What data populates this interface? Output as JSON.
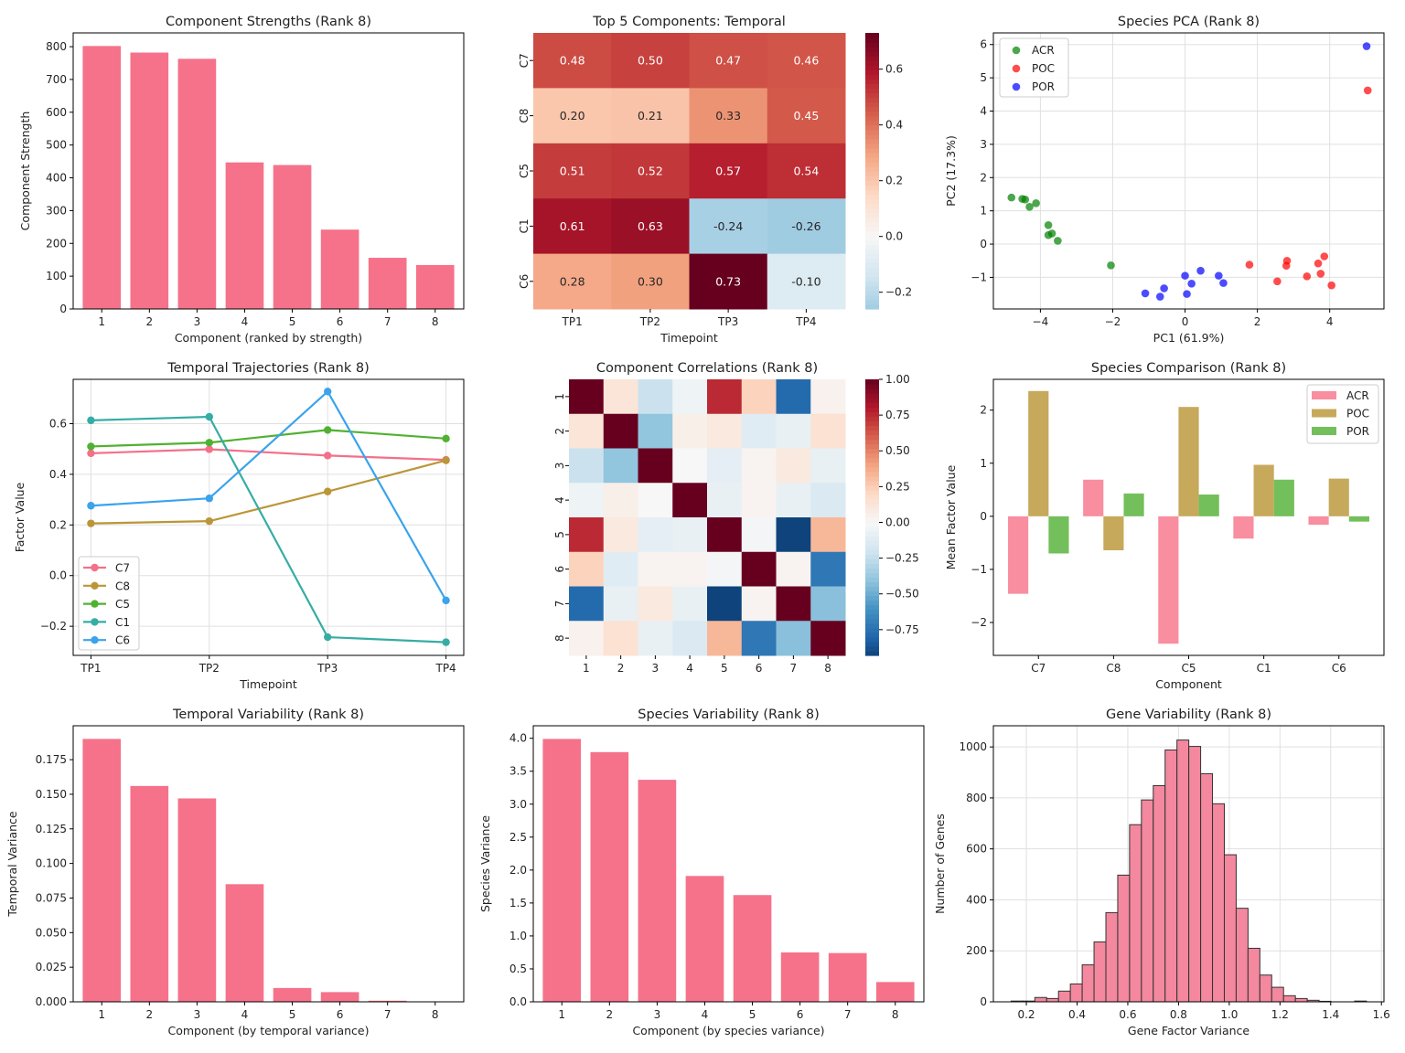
{
  "chart_data": [
    {
      "id": "strengths",
      "type": "bar",
      "title": "Component Strengths (Rank 8)",
      "xlabel": "Component (ranked by strength)",
      "ylabel": "Component Strength",
      "categories": [
        "1",
        "2",
        "3",
        "4",
        "5",
        "6",
        "7",
        "8"
      ],
      "values": [
        802,
        782,
        763,
        447,
        439,
        242,
        156,
        134
      ],
      "ylim": [
        0,
        842
      ],
      "yticks": [
        0,
        100,
        200,
        300,
        400,
        500,
        600,
        700,
        800
      ],
      "ytick_labels": [
        "0",
        "100",
        "200",
        "300",
        "400",
        "500",
        "600",
        "700",
        "800"
      ],
      "color": "#f5728a",
      "grid": false
    },
    {
      "id": "temporal_heatmap",
      "type": "heatmap",
      "title": "Top 5 Components: Temporal",
      "xlabel": "Timepoint",
      "ylabel": "",
      "x": [
        "TP1",
        "TP2",
        "TP3",
        "TP4"
      ],
      "y": [
        "C7",
        "C8",
        "C5",
        "C1",
        "C6"
      ],
      "values": [
        [
          0.48,
          0.5,
          0.47,
          0.46
        ],
        [
          0.2,
          0.21,
          0.33,
          0.45
        ],
        [
          0.51,
          0.52,
          0.57,
          0.54
        ],
        [
          0.61,
          0.63,
          -0.24,
          -0.26
        ],
        [
          0.28,
          0.3,
          0.73,
          -0.1
        ]
      ],
      "annotations": [
        [
          "0.48",
          "0.50",
          "0.47",
          "0.46"
        ],
        [
          "0.20",
          "0.21",
          "0.33",
          "0.45"
        ],
        [
          "0.51",
          "0.52",
          "0.57",
          "0.54"
        ],
        [
          "0.61",
          "0.63",
          "-0.24",
          "-0.26"
        ],
        [
          "0.28",
          "0.30",
          "0.73",
          "-0.10"
        ]
      ],
      "colormap": "RdBu_r",
      "center": 0,
      "vrange": [
        -0.26,
        0.73
      ],
      "colorbar_ticks": [
        -0.2,
        0.0,
        0.2,
        0.4,
        0.6
      ],
      "colorbar_tick_labels": [
        "−0.2",
        "0.0",
        "0.2",
        "0.4",
        "0.6"
      ]
    },
    {
      "id": "pca",
      "type": "scatter",
      "title": "Species PCA (Rank 8)",
      "xlabel": "PC1 (61.9%)",
      "ylabel": "PC2 (17.3%)",
      "xlim": [
        -5.3,
        5.5
      ],
      "ylim": [
        -1.95,
        6.35
      ],
      "xticks": [
        -4,
        -2,
        0,
        2,
        4
      ],
      "xtick_labels": [
        "−4",
        "−2",
        "0",
        "2",
        "4"
      ],
      "yticks": [
        -1,
        0,
        1,
        2,
        3,
        4,
        5,
        6
      ],
      "ytick_labels": [
        "−1",
        "0",
        "1",
        "2",
        "3",
        "4",
        "5",
        "6"
      ],
      "grid": true,
      "legend_position": "top-left",
      "series": [
        {
          "name": "ACR",
          "color": "#008000",
          "points": [
            [
              -4.8,
              1.4
            ],
            [
              -4.5,
              1.36
            ],
            [
              -4.42,
              1.34
            ],
            [
              -4.3,
              1.12
            ],
            [
              -4.12,
              1.23
            ],
            [
              -3.78,
              0.57
            ],
            [
              -3.68,
              0.32
            ],
            [
              -3.78,
              0.27
            ],
            [
              -3.52,
              0.1
            ],
            [
              -2.05,
              -0.64
            ]
          ]
        },
        {
          "name": "POC",
          "color": "#ff0000",
          "points": [
            [
              5.05,
              4.62
            ],
            [
              1.78,
              -0.62
            ],
            [
              2.82,
              -0.5
            ],
            [
              2.8,
              -0.65
            ],
            [
              3.85,
              -0.37
            ],
            [
              3.68,
              -0.58
            ],
            [
              2.55,
              -1.12
            ],
            [
              3.37,
              -0.97
            ],
            [
              3.75,
              -0.89
            ],
            [
              4.05,
              -1.24
            ]
          ]
        },
        {
          "name": "POR",
          "color": "#0000ff",
          "points": [
            [
              5.02,
              5.95
            ],
            [
              0.0,
              -0.95
            ],
            [
              0.43,
              -0.8
            ],
            [
              0.93,
              -0.95
            ],
            [
              1.06,
              -1.17
            ],
            [
              0.18,
              -1.19
            ],
            [
              -0.58,
              -1.33
            ],
            [
              -1.1,
              -1.48
            ],
            [
              -0.69,
              -1.58
            ],
            [
              0.05,
              -1.5
            ]
          ]
        }
      ]
    },
    {
      "id": "trajectories",
      "type": "line",
      "title": "Temporal Trajectories (Rank 8)",
      "xlabel": "Timepoint",
      "ylabel": "Factor Value",
      "categories": [
        "TP1",
        "TP2",
        "TP3",
        "TP4"
      ],
      "ylim": [
        -0.315,
        0.775
      ],
      "yticks": [
        -0.2,
        0.0,
        0.2,
        0.4,
        0.6
      ],
      "ytick_labels": [
        "−0.2",
        "0.0",
        "0.2",
        "0.4",
        "0.6"
      ],
      "grid": true,
      "legend_position": "bottom-left",
      "series": [
        {
          "name": "C7",
          "color": "#f37088",
          "values": [
            0.483,
            0.499,
            0.474,
            0.457
          ]
        },
        {
          "name": "C8",
          "color": "#bb9638",
          "values": [
            0.206,
            0.215,
            0.332,
            0.455
          ]
        },
        {
          "name": "C5",
          "color": "#50b131",
          "values": [
            0.51,
            0.525,
            0.575,
            0.541
          ]
        },
        {
          "name": "C1",
          "color": "#36ada4",
          "values": [
            0.613,
            0.627,
            -0.243,
            -0.263
          ]
        },
        {
          "name": "C6",
          "color": "#3ba3ec",
          "values": [
            0.276,
            0.305,
            0.727,
            -0.098
          ]
        }
      ]
    },
    {
      "id": "correlations",
      "type": "heatmap",
      "title": "Component Correlations (Rank 8)",
      "xlabel": "",
      "ylabel": "",
      "x": [
        "1",
        "2",
        "3",
        "4",
        "5",
        "6",
        "7",
        "8"
      ],
      "y": [
        "1",
        "2",
        "3",
        "4",
        "5",
        "6",
        "7",
        "8"
      ],
      "values": [
        [
          1.0,
          0.13,
          -0.22,
          -0.05,
          0.75,
          0.23,
          -0.78,
          0.04
        ],
        [
          0.13,
          1.0,
          -0.4,
          0.06,
          0.1,
          -0.12,
          -0.08,
          0.15
        ],
        [
          -0.22,
          -0.4,
          1.0,
          0.0,
          -0.1,
          0.03,
          0.1,
          -0.08
        ],
        [
          -0.05,
          0.06,
          0.0,
          1.0,
          -0.08,
          0.03,
          -0.08,
          -0.15
        ],
        [
          0.75,
          0.1,
          -0.1,
          -0.08,
          1.0,
          -0.02,
          -0.93,
          0.33
        ],
        [
          0.23,
          -0.12,
          0.03,
          0.03,
          -0.02,
          1.0,
          0.03,
          -0.72
        ],
        [
          -0.78,
          -0.08,
          0.1,
          -0.08,
          -0.93,
          0.03,
          1.0,
          -0.42
        ],
        [
          0.04,
          0.15,
          -0.08,
          -0.15,
          0.33,
          -0.72,
          -0.42,
          1.0
        ]
      ],
      "colormap": "RdBu_r",
      "center": 0,
      "vrange": [
        -0.93,
        1.0
      ],
      "colorbar_ticks": [
        -0.75,
        -0.5,
        -0.25,
        0.0,
        0.25,
        0.5,
        0.75,
        1.0
      ],
      "colorbar_tick_labels": [
        "−0.75",
        "−0.50",
        "−0.25",
        "0.00",
        "0.25",
        "0.50",
        "0.75",
        "1.00"
      ]
    },
    {
      "id": "species_comparison",
      "type": "bar",
      "title": "Species Comparison (Rank 8)",
      "xlabel": "Component",
      "ylabel": "Mean Factor Value",
      "categories": [
        "C7",
        "C8",
        "C5",
        "C1",
        "C6"
      ],
      "ylim": [
        -2.62,
        2.58
      ],
      "yticks": [
        -2,
        -1,
        0,
        1,
        2
      ],
      "ytick_labels": [
        "−2",
        "−1",
        "0",
        "1",
        "2"
      ],
      "grid": false,
      "legend_position": "top-right",
      "series": [
        {
          "name": "ACR",
          "color": "#f88ea0",
          "values": [
            -1.46,
            0.69,
            -2.4,
            -0.42,
            -0.16
          ]
        },
        {
          "name": "POC",
          "color": "#c6a95b",
          "values": [
            2.36,
            -0.64,
            2.06,
            0.97,
            0.71
          ]
        },
        {
          "name": "POR",
          "color": "#73bf5b",
          "values": [
            -0.7,
            0.43,
            0.41,
            0.69,
            -0.1
          ]
        }
      ]
    },
    {
      "id": "temporal_variability",
      "type": "bar",
      "title": "Temporal Variability (Rank 8)",
      "xlabel": "Component (by temporal variance)",
      "ylabel": "Temporal Variance",
      "categories": [
        "1",
        "2",
        "3",
        "4",
        "5",
        "6",
        "7",
        "8"
      ],
      "values": [
        0.19,
        0.156,
        0.147,
        0.085,
        0.01,
        0.007,
        0.0008,
        0.0002
      ],
      "ylim": [
        0,
        0.1995
      ],
      "yticks": [
        0,
        0.025,
        0.05,
        0.075,
        0.1,
        0.125,
        0.15,
        0.175
      ],
      "ytick_labels": [
        "0.000",
        "0.025",
        "0.050",
        "0.075",
        "0.100",
        "0.125",
        "0.150",
        "0.175"
      ],
      "color": "#f5728a",
      "grid": false
    },
    {
      "id": "species_variability",
      "type": "bar",
      "title": "Species Variability (Rank 8)",
      "xlabel": "Component (by species variance)",
      "ylabel": "Species Variance",
      "categories": [
        "1",
        "2",
        "3",
        "4",
        "5",
        "6",
        "7",
        "8"
      ],
      "values": [
        3.99,
        3.79,
        3.37,
        1.91,
        1.62,
        0.75,
        0.74,
        0.3
      ],
      "ylim": [
        0,
        4.19
      ],
      "yticks": [
        0,
        0.5,
        1,
        1.5,
        2,
        2.5,
        3,
        3.5,
        4
      ],
      "ytick_labels": [
        "0.0",
        "0.5",
        "1.0",
        "1.5",
        "2.0",
        "2.5",
        "3.0",
        "3.5",
        "4.0"
      ],
      "color": "#f5728a",
      "grid": false
    },
    {
      "id": "gene_variability",
      "type": "bar",
      "subtype": "histogram",
      "title": "Gene Variability (Rank 8)",
      "xlabel": "Gene Factor Variance",
      "ylabel": "Number of Genes",
      "bin_start": 0.14,
      "bin_width": 0.0467,
      "values": [
        3,
        3,
        17,
        13,
        42,
        70,
        145,
        235,
        350,
        497,
        695,
        792,
        848,
        988,
        1027,
        1002,
        895,
        777,
        577,
        367,
        210,
        105,
        57,
        24,
        13,
        6,
        2,
        0,
        0,
        3
      ],
      "xlim": [
        0.07,
        1.61
      ],
      "ylim": [
        0,
        1083
      ],
      "xticks": [
        0.2,
        0.4,
        0.6,
        0.8,
        1.0,
        1.2,
        1.4,
        1.6
      ],
      "xtick_labels": [
        "0.2",
        "0.4",
        "0.6",
        "0.8",
        "1.0",
        "1.2",
        "1.4",
        "1.6"
      ],
      "yticks": [
        0,
        200,
        400,
        600,
        800,
        1000
      ],
      "ytick_labels": [
        "0",
        "200",
        "400",
        "600",
        "800",
        "1000"
      ],
      "color": "#f3889e",
      "edgecolor": "#333333",
      "grid": true
    }
  ]
}
